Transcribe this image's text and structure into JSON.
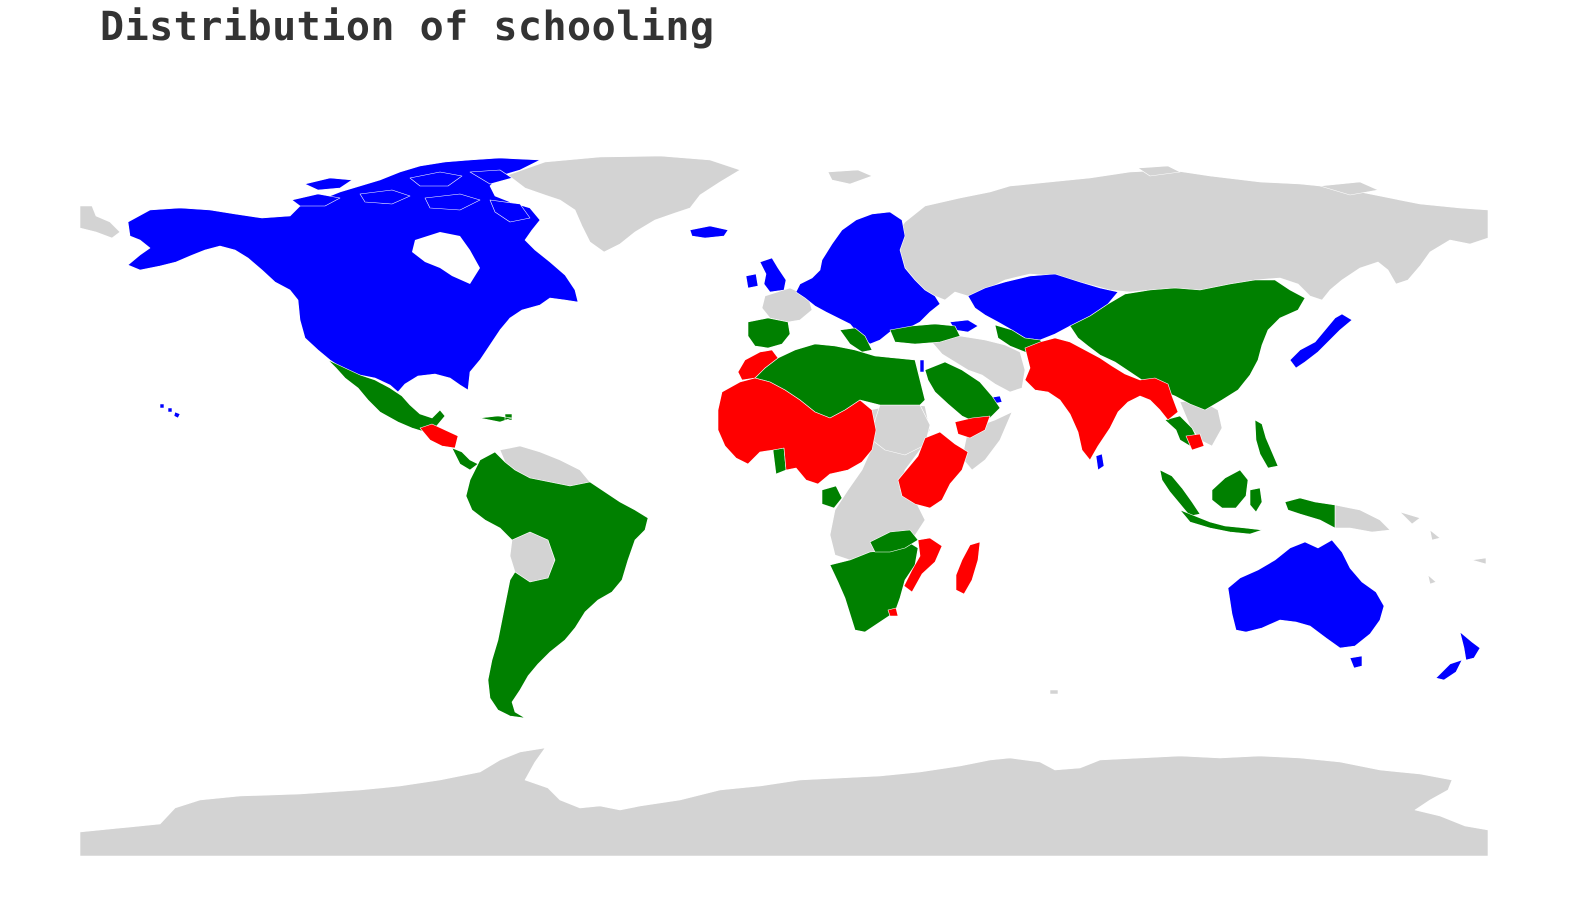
{
  "title": "Distribution of schooling",
  "colors": {
    "blue": "#0000ff",
    "green": "#008000",
    "red": "#ff0000",
    "nodata": "#d3d3d3",
    "background": "#ffffff",
    "title": "#333333"
  }
}
